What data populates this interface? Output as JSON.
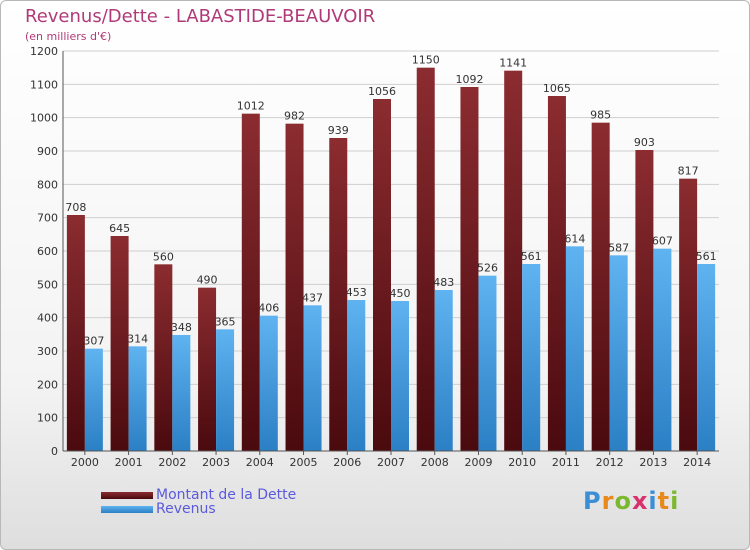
{
  "header": {
    "title": "Revenus/Dette - LABASTIDE-BEAUVOIR",
    "subtitle": "(en milliers d'€)"
  },
  "legend": {
    "debt_label": "Montant de la Dette",
    "revenue_label": "Revenus"
  },
  "logo": {
    "letters": [
      "P",
      "r",
      "o",
      "x",
      "i",
      "t",
      "i"
    ],
    "colors": [
      "#3b8fd6",
      "#e8891d",
      "#7cb82f",
      "#d6336c",
      "#3b8fd6",
      "#e8891d",
      "#7cb82f"
    ]
  },
  "colors": {
    "debt": "#7a1e22",
    "revenue": "#4aa3e6",
    "title": "#b03a78",
    "legend_text": "#5a5adc"
  },
  "chart_data": {
    "type": "bar",
    "categories": [
      "2000",
      "2001",
      "2002",
      "2003",
      "2004",
      "2005",
      "2006",
      "2007",
      "2008",
      "2009",
      "2010",
      "2011",
      "2012",
      "2013",
      "2014"
    ],
    "series": [
      {
        "name": "Montant de la Dette",
        "values": [
          708,
          645,
          560,
          490,
          1012,
          982,
          939,
          1056,
          1150,
          1092,
          1141,
          1065,
          985,
          903,
          817
        ]
      },
      {
        "name": "Revenus",
        "values": [
          307,
          314,
          348,
          365,
          406,
          437,
          453,
          450,
          483,
          526,
          561,
          614,
          587,
          607,
          561
        ]
      }
    ],
    "ylim": [
      0,
      1200
    ],
    "yticks": [
      0,
      100,
      200,
      300,
      400,
      500,
      600,
      700,
      800,
      900,
      1000,
      1100,
      1200
    ],
    "grid": true,
    "legend_position": "bottom-left"
  }
}
